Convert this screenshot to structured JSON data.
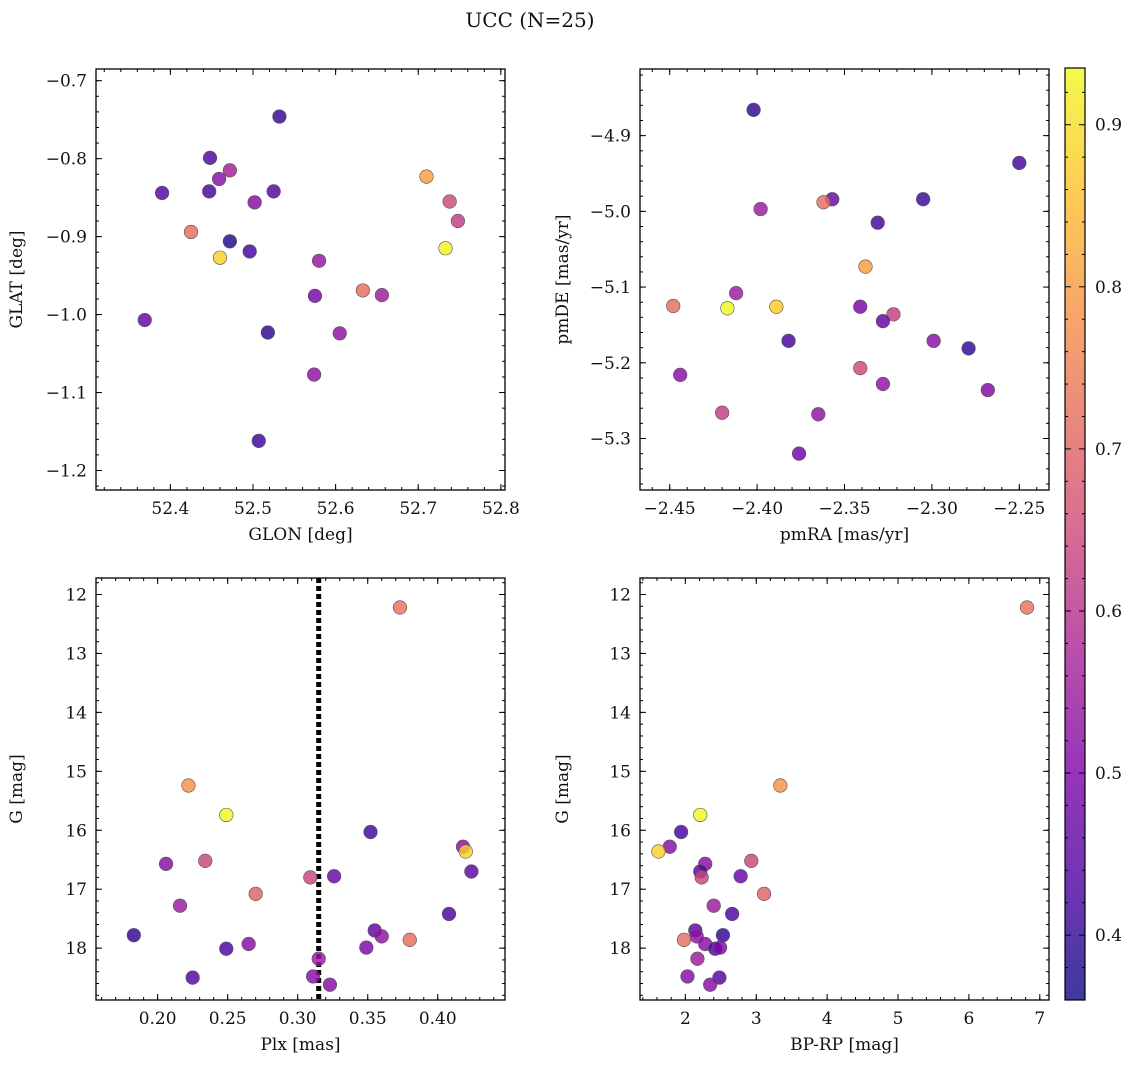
{
  "title": "UCC (N=25)",
  "colorbar": {
    "ticks": [
      0.4,
      0.5,
      0.6,
      0.7,
      0.8,
      0.9
    ],
    "range": [
      0.36,
      0.935
    ],
    "colormap": "plasma"
  },
  "chart_data": [
    {
      "type": "scatter",
      "xlabel": "GLON [deg]",
      "ylabel": "GLAT [deg]",
      "xlim": [
        52.31,
        52.805
      ],
      "ylim": [
        -1.225,
        -0.685
      ],
      "xticks": [
        52.4,
        52.5,
        52.6,
        52.7,
        52.8
      ],
      "yticks": [
        -1.2,
        -1.1,
        -1.0,
        -0.9,
        -0.8,
        -0.7
      ],
      "points": [
        {
          "x": 52.532,
          "y": -0.746,
          "c": 0.4
        },
        {
          "x": 52.448,
          "y": -0.799,
          "c": 0.43
        },
        {
          "x": 52.472,
          "y": -0.815,
          "c": 0.56
        },
        {
          "x": 52.459,
          "y": -0.826,
          "c": 0.52
        },
        {
          "x": 52.39,
          "y": -0.844,
          "c": 0.44
        },
        {
          "x": 52.447,
          "y": -0.842,
          "c": 0.42
        },
        {
          "x": 52.525,
          "y": -0.842,
          "c": 0.44
        },
        {
          "x": 52.502,
          "y": -0.856,
          "c": 0.52
        },
        {
          "x": 52.71,
          "y": -0.823,
          "c": 0.8
        },
        {
          "x": 52.738,
          "y": -0.855,
          "c": 0.65
        },
        {
          "x": 52.748,
          "y": -0.88,
          "c": 0.62
        },
        {
          "x": 52.425,
          "y": -0.894,
          "c": 0.72
        },
        {
          "x": 52.472,
          "y": -0.906,
          "c": 0.38
        },
        {
          "x": 52.46,
          "y": -0.927,
          "c": 0.88
        },
        {
          "x": 52.496,
          "y": -0.919,
          "c": 0.42
        },
        {
          "x": 52.733,
          "y": -0.915,
          "c": 0.93
        },
        {
          "x": 52.58,
          "y": -0.931,
          "c": 0.54
        },
        {
          "x": 52.633,
          "y": -0.969,
          "c": 0.72
        },
        {
          "x": 52.575,
          "y": -0.976,
          "c": 0.49
        },
        {
          "x": 52.656,
          "y": -0.975,
          "c": 0.55
        },
        {
          "x": 52.369,
          "y": -1.007,
          "c": 0.46
        },
        {
          "x": 52.518,
          "y": -1.023,
          "c": 0.4
        },
        {
          "x": 52.605,
          "y": -1.024,
          "c": 0.53
        },
        {
          "x": 52.574,
          "y": -1.077,
          "c": 0.53
        },
        {
          "x": 52.507,
          "y": -1.162,
          "c": 0.41
        }
      ]
    },
    {
      "type": "scatter",
      "xlabel": "pmRA [mas/yr]",
      "ylabel": "pmDE [mas/yr]",
      "xlim": [
        -2.467,
        -2.233
      ],
      "ylim": [
        -5.368,
        -4.812
      ],
      "xticks": [
        -2.45,
        -2.4,
        -2.35,
        -2.3,
        -2.25
      ],
      "yticks": [
        -5.3,
        -5.2,
        -5.1,
        -5.0,
        -4.9
      ],
      "points": [
        {
          "x": -2.402,
          "y": -4.866,
          "c": 0.4
        },
        {
          "x": -2.25,
          "y": -4.936,
          "c": 0.42
        },
        {
          "x": -2.305,
          "y": -4.984,
          "c": 0.41
        },
        {
          "x": -2.357,
          "y": -4.984,
          "c": 0.47
        },
        {
          "x": -2.362,
          "y": -4.988,
          "c": 0.72
        },
        {
          "x": -2.398,
          "y": -4.997,
          "c": 0.55
        },
        {
          "x": -2.331,
          "y": -5.015,
          "c": 0.42
        },
        {
          "x": -2.338,
          "y": -5.073,
          "c": 0.8
        },
        {
          "x": -2.412,
          "y": -5.108,
          "c": 0.55
        },
        {
          "x": -2.448,
          "y": -5.125,
          "c": 0.72
        },
        {
          "x": -2.417,
          "y": -5.128,
          "c": 0.93
        },
        {
          "x": -2.389,
          "y": -5.126,
          "c": 0.87
        },
        {
          "x": -2.341,
          "y": -5.126,
          "c": 0.5
        },
        {
          "x": -2.322,
          "y": -5.136,
          "c": 0.63
        },
        {
          "x": -2.328,
          "y": -5.145,
          "c": 0.46
        },
        {
          "x": -2.382,
          "y": -5.171,
          "c": 0.42
        },
        {
          "x": -2.299,
          "y": -5.171,
          "c": 0.52
        },
        {
          "x": -2.279,
          "y": -5.181,
          "c": 0.4
        },
        {
          "x": -2.444,
          "y": -5.216,
          "c": 0.52
        },
        {
          "x": -2.341,
          "y": -5.207,
          "c": 0.65
        },
        {
          "x": -2.328,
          "y": -5.228,
          "c": 0.53
        },
        {
          "x": -2.268,
          "y": -5.236,
          "c": 0.51
        },
        {
          "x": -2.42,
          "y": -5.266,
          "c": 0.62
        },
        {
          "x": -2.365,
          "y": -5.268,
          "c": 0.53
        },
        {
          "x": -2.376,
          "y": -5.32,
          "c": 0.48
        }
      ]
    },
    {
      "type": "scatter",
      "xlabel": "Plx [mas]",
      "ylabel": "G [mag]",
      "xlim": [
        0.156,
        0.448
      ],
      "ylim": [
        18.88,
        11.72
      ],
      "xticks": [
        0.2,
        0.25,
        0.3,
        0.35,
        0.4
      ],
      "yticks": [
        12,
        13,
        14,
        15,
        16,
        17,
        18
      ],
      "vline": 0.315,
      "points": [
        {
          "x": 0.373,
          "y": 12.22,
          "c": 0.73
        },
        {
          "x": 0.222,
          "y": 15.24,
          "c": 0.78
        },
        {
          "x": 0.249,
          "y": 15.74,
          "c": 0.93
        },
        {
          "x": 0.352,
          "y": 16.03,
          "c": 0.42
        },
        {
          "x": 0.418,
          "y": 16.28,
          "c": 0.52
        },
        {
          "x": 0.42,
          "y": 16.36,
          "c": 0.88
        },
        {
          "x": 0.234,
          "y": 16.52,
          "c": 0.64
        },
        {
          "x": 0.206,
          "y": 16.57,
          "c": 0.52
        },
        {
          "x": 0.424,
          "y": 16.7,
          "c": 0.45
        },
        {
          "x": 0.309,
          "y": 16.8,
          "c": 0.64
        },
        {
          "x": 0.326,
          "y": 16.78,
          "c": 0.47
        },
        {
          "x": 0.27,
          "y": 17.08,
          "c": 0.7
        },
        {
          "x": 0.216,
          "y": 17.28,
          "c": 0.55
        },
        {
          "x": 0.408,
          "y": 17.42,
          "c": 0.43
        },
        {
          "x": 0.355,
          "y": 17.7,
          "c": 0.46
        },
        {
          "x": 0.183,
          "y": 17.78,
          "c": 0.4
        },
        {
          "x": 0.36,
          "y": 17.8,
          "c": 0.53
        },
        {
          "x": 0.38,
          "y": 17.86,
          "c": 0.72
        },
        {
          "x": 0.265,
          "y": 17.93,
          "c": 0.52
        },
        {
          "x": 0.249,
          "y": 18.01,
          "c": 0.43
        },
        {
          "x": 0.349,
          "y": 17.99,
          "c": 0.5
        },
        {
          "x": 0.315,
          "y": 18.18,
          "c": 0.55
        },
        {
          "x": 0.311,
          "y": 18.48,
          "c": 0.52
        },
        {
          "x": 0.225,
          "y": 18.5,
          "c": 0.44
        },
        {
          "x": 0.323,
          "y": 18.62,
          "c": 0.52
        }
      ]
    },
    {
      "type": "scatter",
      "xlabel": "BP-RP [mag]",
      "ylabel": "G [mag]",
      "xlim": [
        1.36,
        7.13
      ],
      "ylim": [
        18.88,
        11.72
      ],
      "xticks": [
        2,
        3,
        4,
        5,
        6,
        7
      ],
      "yticks": [
        12,
        13,
        14,
        15,
        16,
        17,
        18
      ],
      "points": [
        {
          "x": 6.82,
          "y": 12.22,
          "c": 0.73
        },
        {
          "x": 3.34,
          "y": 15.24,
          "c": 0.78
        },
        {
          "x": 2.21,
          "y": 15.74,
          "c": 0.93
        },
        {
          "x": 1.94,
          "y": 16.03,
          "c": 0.42
        },
        {
          "x": 1.78,
          "y": 16.28,
          "c": 0.52
        },
        {
          "x": 1.62,
          "y": 16.36,
          "c": 0.88
        },
        {
          "x": 2.93,
          "y": 16.52,
          "c": 0.64
        },
        {
          "x": 2.28,
          "y": 16.57,
          "c": 0.52
        },
        {
          "x": 2.21,
          "y": 16.7,
          "c": 0.45
        },
        {
          "x": 2.23,
          "y": 16.8,
          "c": 0.64
        },
        {
          "x": 2.78,
          "y": 16.78,
          "c": 0.47
        },
        {
          "x": 3.11,
          "y": 17.08,
          "c": 0.7
        },
        {
          "x": 2.4,
          "y": 17.28,
          "c": 0.55
        },
        {
          "x": 2.66,
          "y": 17.42,
          "c": 0.43
        },
        {
          "x": 2.14,
          "y": 17.7,
          "c": 0.46
        },
        {
          "x": 2.53,
          "y": 17.78,
          "c": 0.4
        },
        {
          "x": 2.16,
          "y": 17.8,
          "c": 0.53
        },
        {
          "x": 1.98,
          "y": 17.86,
          "c": 0.72
        },
        {
          "x": 2.28,
          "y": 17.93,
          "c": 0.52
        },
        {
          "x": 2.42,
          "y": 18.01,
          "c": 0.43
        },
        {
          "x": 2.49,
          "y": 17.99,
          "c": 0.5
        },
        {
          "x": 2.17,
          "y": 18.18,
          "c": 0.55
        },
        {
          "x": 2.03,
          "y": 18.48,
          "c": 0.52
        },
        {
          "x": 2.48,
          "y": 18.5,
          "c": 0.44
        },
        {
          "x": 2.35,
          "y": 18.62,
          "c": 0.52
        }
      ]
    }
  ]
}
